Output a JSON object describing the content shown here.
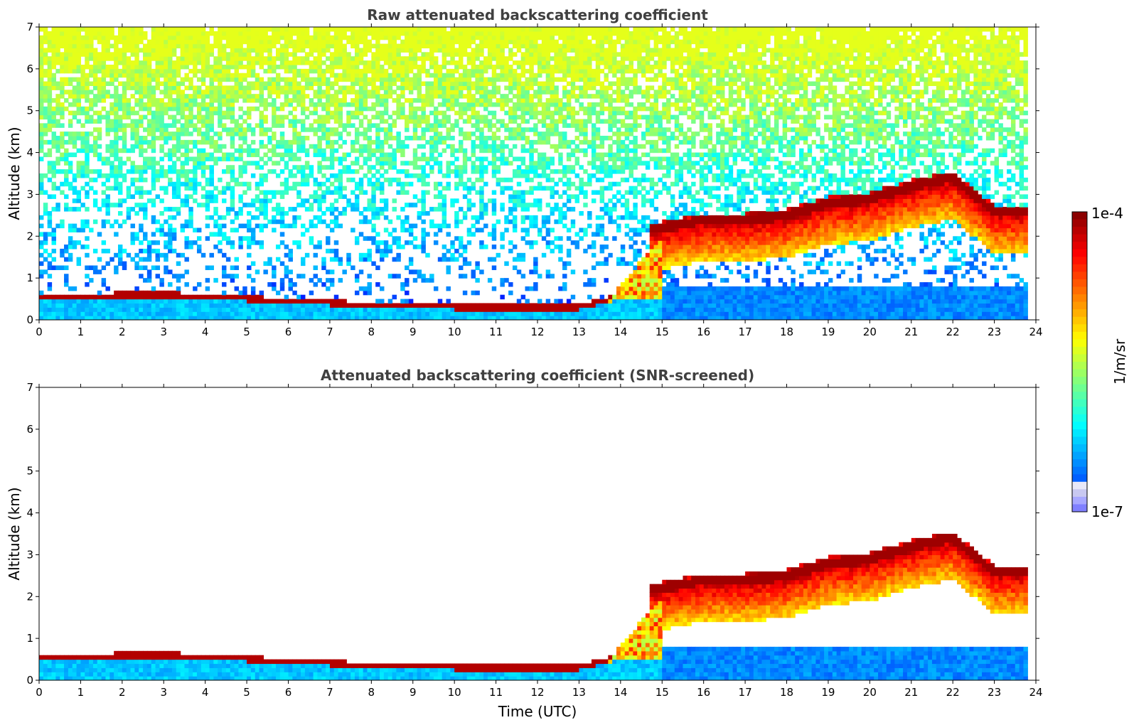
{
  "chart_data": [
    {
      "type": "heatmap",
      "title": "Raw attenuated backscattering coefficient",
      "xlabel": "",
      "ylabel": "Altitude (km)",
      "xlim": [
        0,
        24
      ],
      "ylim": [
        0,
        7
      ],
      "x_ticks": [
        "0",
        "1",
        "2",
        "3",
        "4",
        "5",
        "6",
        "7",
        "8",
        "9",
        "10",
        "11",
        "12",
        "13",
        "14",
        "15",
        "16",
        "17",
        "18",
        "19",
        "20",
        "21",
        "22",
        "23",
        "24"
      ],
      "y_ticks": [
        "0",
        "1",
        "2",
        "3",
        "4",
        "5",
        "6",
        "7"
      ],
      "data_end_hour": 23.8,
      "aerosol_layer_top_km": [
        [
          0,
          0.5
        ],
        [
          3,
          0.55
        ],
        [
          6,
          0.4
        ],
        [
          8,
          0.3
        ],
        [
          10,
          0.25
        ],
        [
          13,
          0.25
        ],
        [
          14,
          0.5
        ]
      ],
      "cloud_layer_km": [
        [
          15,
          2.2
        ],
        [
          16,
          2.4
        ],
        [
          17,
          2.4
        ],
        [
          18,
          2.5
        ],
        [
          19,
          2.8
        ],
        [
          20,
          2.9
        ],
        [
          21,
          3.2
        ],
        [
          22,
          3.4
        ],
        [
          23,
          2.6
        ],
        [
          23.8,
          2.6
        ]
      ],
      "noise_increasing_with_altitude": true
    },
    {
      "type": "heatmap",
      "title": "Attenuated backscattering coefficient (SNR-screened)",
      "xlabel": "Time (UTC)",
      "ylabel": "Altitude (km)",
      "xlim": [
        0,
        24
      ],
      "ylim": [
        0,
        7
      ],
      "x_ticks": [
        "0",
        "1",
        "2",
        "3",
        "4",
        "5",
        "6",
        "7",
        "8",
        "9",
        "10",
        "11",
        "12",
        "13",
        "14",
        "15",
        "16",
        "17",
        "18",
        "19",
        "20",
        "21",
        "22",
        "23",
        "24"
      ],
      "y_ticks": [
        "0",
        "1",
        "2",
        "3",
        "4",
        "5",
        "6",
        "7"
      ],
      "data_end_hour": 23.8,
      "aerosol_layer_top_km": [
        [
          0,
          0.5
        ],
        [
          3,
          0.55
        ],
        [
          6,
          0.4
        ],
        [
          8,
          0.3
        ],
        [
          10,
          0.25
        ],
        [
          13,
          0.25
        ],
        [
          14,
          0.5
        ]
      ],
      "cloud_layer_km": [
        [
          15,
          2.2
        ],
        [
          16,
          2.4
        ],
        [
          17,
          2.4
        ],
        [
          18,
          2.5
        ],
        [
          19,
          2.8
        ],
        [
          20,
          2.9
        ],
        [
          21,
          3.2
        ],
        [
          22,
          3.4
        ],
        [
          23,
          2.6
        ],
        [
          23.8,
          2.6
        ]
      ],
      "noise_increasing_with_altitude": false
    }
  ],
  "colorbar": {
    "label": "1/m/sr",
    "max_label": "1e-4",
    "min_label": "1e-7",
    "colormap": "jet",
    "scale": "log"
  }
}
